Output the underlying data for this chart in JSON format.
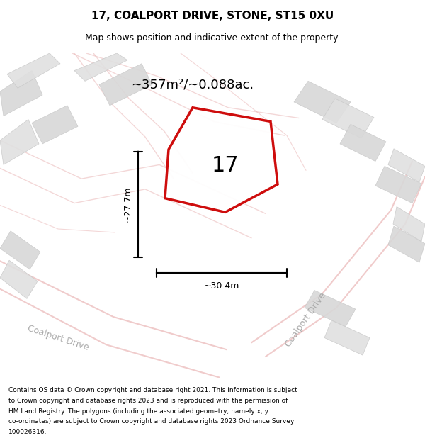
{
  "title": "17, COALPORT DRIVE, STONE, ST15 0XU",
  "subtitle": "Map shows position and indicative extent of the property.",
  "area_text": "~357m²/~0.088ac.",
  "number_label": "17",
  "dim_height": "~27.7m",
  "dim_width": "~30.4m",
  "footer_lines": [
    "Contains OS data © Crown copyright and database right 2021. This information is subject",
    "to Crown copyright and database rights 2023 and is reproduced with the permission of",
    "HM Land Registry. The polygons (including the associated geometry, namely x, y",
    "co-ordinates) are subject to Crown copyright and database rights 2023 Ordnance Survey",
    "100026316."
  ],
  "map_bg": "#efefef",
  "plot_color": "#cc0000",
  "road_color": "#e8b0b0",
  "building_fc": "#d8d8d8",
  "building_ec": "#c8c8c8",
  "street_label_1": "Coalport Drive",
  "street_label_2": "Coalport Drive",
  "street_label_color": "#aaaaaa"
}
